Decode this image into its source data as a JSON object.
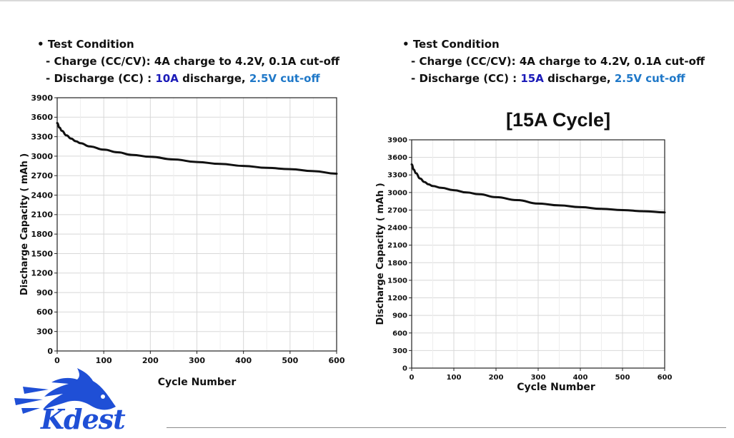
{
  "panels": [
    {
      "condition": {
        "heading": "Test Condition",
        "charge_prefix": "- Charge (CC/CV): ",
        "charge_value": "4A charge to 4.2V, 0.1A cut-off",
        "discharge_prefix": "- Discharge (CC) : ",
        "discharge_current": "10A",
        "discharge_mid": " discharge, ",
        "discharge_cutoff": "2.5V cut-off"
      },
      "title": ""
    },
    {
      "condition": {
        "heading": "Test Condition",
        "charge_prefix": "- Charge (CC/CV): ",
        "charge_value": "4A charge to 4.2V, 0.1A cut-off",
        "discharge_prefix": "- Discharge (CC) : ",
        "discharge_current": "15A",
        "discharge_mid": " discharge, ",
        "discharge_cutoff": "2.5V cut-off"
      },
      "title": "[15A Cycle]"
    }
  ],
  "colors": {
    "dark_blue": "#1a1ab8",
    "light_blue": "#1f78c8",
    "curve": "#111111",
    "grid": "#d8d8d8"
  },
  "logo": {
    "text": "Kdest"
  },
  "chart_data": [
    {
      "type": "line",
      "title": "",
      "xlabel": "Cycle Number",
      "ylabel": "Discharge Capacity ( mAh )",
      "xlim": [
        0,
        600
      ],
      "ylim": [
        0,
        3900
      ],
      "xticks": [
        0,
        100,
        200,
        300,
        400,
        500,
        600
      ],
      "yticks": [
        0,
        300,
        600,
        900,
        1200,
        1500,
        1800,
        2100,
        2400,
        2700,
        3000,
        3300,
        3600,
        3900
      ],
      "grid": true,
      "series": [
        {
          "name": "10A discharge",
          "x": [
            0,
            5,
            10,
            20,
            30,
            40,
            50,
            70,
            100,
            130,
            160,
            200,
            250,
            300,
            350,
            400,
            450,
            500,
            550,
            600
          ],
          "y": [
            3510,
            3440,
            3390,
            3320,
            3270,
            3230,
            3200,
            3150,
            3100,
            3060,
            3020,
            2990,
            2950,
            2910,
            2880,
            2850,
            2820,
            2800,
            2770,
            2730
          ]
        }
      ]
    },
    {
      "type": "line",
      "title": "[15A Cycle]",
      "xlabel": "Cycle Number",
      "ylabel": "Discharge Capacity ( mAh )",
      "xlim": [
        0,
        600
      ],
      "ylim": [
        0,
        3900
      ],
      "xticks": [
        0,
        100,
        200,
        300,
        400,
        500,
        600
      ],
      "yticks": [
        0,
        300,
        600,
        900,
        1200,
        1500,
        1800,
        2100,
        2400,
        2700,
        3000,
        3300,
        3600,
        3900
      ],
      "grid": true,
      "series": [
        {
          "name": "15A discharge",
          "x": [
            0,
            5,
            10,
            20,
            30,
            40,
            50,
            70,
            100,
            130,
            160,
            200,
            250,
            300,
            350,
            400,
            450,
            500,
            550,
            600
          ],
          "y": [
            3480,
            3390,
            3330,
            3240,
            3180,
            3140,
            3110,
            3080,
            3040,
            3000,
            2970,
            2920,
            2870,
            2810,
            2780,
            2750,
            2720,
            2700,
            2680,
            2660
          ]
        }
      ]
    }
  ]
}
